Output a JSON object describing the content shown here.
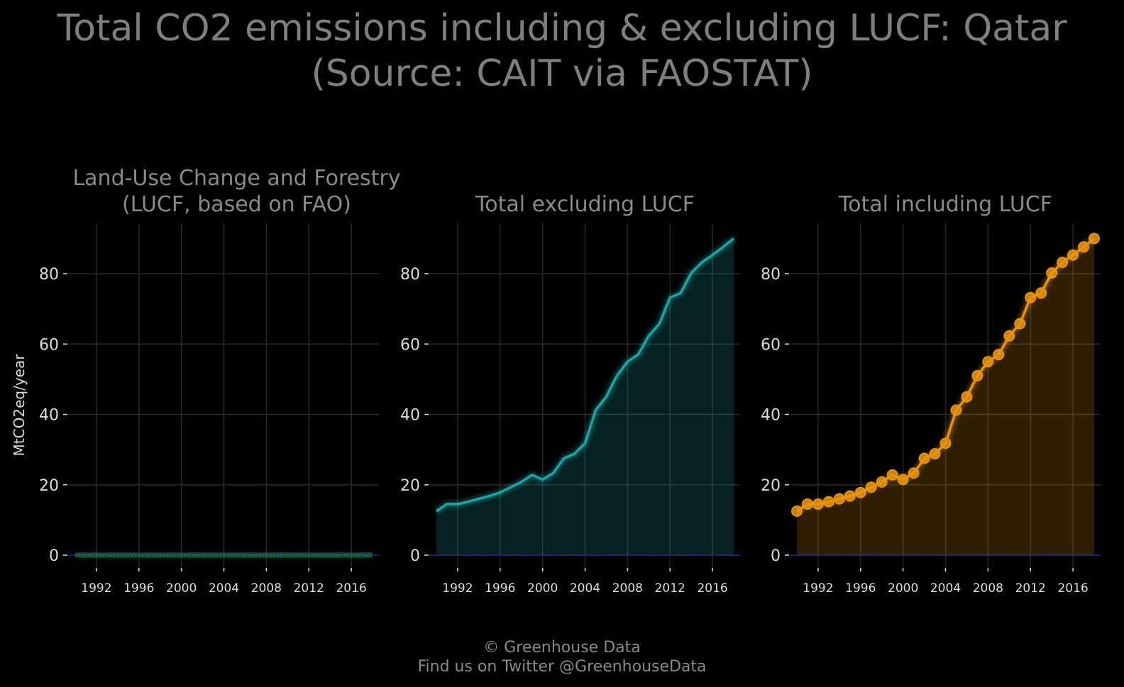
{
  "title_line1": "Total CO2 emissions including & excluding LUCF: Qatar",
  "title_line2": "(Source: CAIT via FAOSTAT)",
  "footer": {
    "credit": "© Greenhouse Data",
    "twitter": "Find us on Twitter @GreenhouseData"
  },
  "colors": {
    "background": "#000000",
    "grid": "#2a2a2a",
    "text": "#8a8a8a",
    "tick_text": "#dcdcdc",
    "zero_line": "#1a1aff",
    "lucf": "#1f7a3a",
    "excl": "#1aa6a6",
    "incl": "#e8940c"
  },
  "chart_data": [
    {
      "type": "line",
      "panel": "lucf",
      "title_line1": "Land-Use Change and Forestry",
      "title_line2": "(LUCF, based on FAO)",
      "ylabel": "MtCO2eq/year",
      "xlim": [
        1990,
        2018
      ],
      "ylim": [
        0,
        92
      ],
      "xticks": [
        1992,
        1996,
        2000,
        2004,
        2008,
        2012,
        2016
      ],
      "yticks": [
        0,
        20,
        40,
        60,
        80
      ],
      "x": [
        1990,
        1991,
        1992,
        1993,
        1994,
        1995,
        1996,
        1997,
        1998,
        1999,
        2000,
        2001,
        2002,
        2003,
        2004,
        2005,
        2006,
        2007,
        2008,
        2009,
        2010,
        2011,
        2012,
        2013,
        2014,
        2015,
        2016,
        2017,
        2018
      ],
      "series": [
        {
          "name": "",
          "values": [
            0,
            0,
            0,
            0,
            0,
            0,
            0,
            0,
            0,
            0,
            0,
            0,
            0,
            0,
            0,
            0,
            0,
            0,
            0,
            0,
            0,
            0,
            0,
            0,
            0,
            0,
            0,
            0,
            0
          ]
        }
      ],
      "markers": false,
      "area_fill": true
    },
    {
      "type": "area",
      "panel": "excl",
      "title_line1": "Total excluding LUCF",
      "title_line2": "",
      "ylabel": "",
      "xlim": [
        1990,
        2018
      ],
      "ylim": [
        0,
        92
      ],
      "xticks": [
        1992,
        1996,
        2000,
        2004,
        2008,
        2012,
        2016
      ],
      "yticks": [
        0,
        20,
        40,
        60,
        80
      ],
      "x": [
        1990,
        1991,
        1992,
        1993,
        1994,
        1995,
        1996,
        1997,
        1998,
        1999,
        2000,
        2001,
        2002,
        2003,
        2004,
        2005,
        2006,
        2007,
        2008,
        2009,
        2010,
        2011,
        2012,
        2013,
        2014,
        2015,
        2016,
        2017,
        2018
      ],
      "series": [
        {
          "name": "",
          "values": [
            12.5,
            14.5,
            14.5,
            15.2,
            16.0,
            16.8,
            17.8,
            19.3,
            20.8,
            22.8,
            21.5,
            23.3,
            27.5,
            28.8,
            31.8,
            41.2,
            45.0,
            51.0,
            55.0,
            57.0,
            62.3,
            65.8,
            73.2,
            74.5,
            80.2,
            83.2,
            85.3,
            87.6,
            90.0
          ]
        }
      ],
      "markers": false,
      "area_fill": true
    },
    {
      "type": "area",
      "panel": "incl",
      "title_line1": "Total including LUCF",
      "title_line2": "",
      "ylabel": "",
      "xlim": [
        1990,
        2018
      ],
      "ylim": [
        0,
        92
      ],
      "xticks": [
        1992,
        1996,
        2000,
        2004,
        2008,
        2012,
        2016
      ],
      "yticks": [
        0,
        20,
        40,
        60,
        80
      ],
      "x": [
        1990,
        1991,
        1992,
        1993,
        1994,
        1995,
        1996,
        1997,
        1998,
        1999,
        2000,
        2001,
        2002,
        2003,
        2004,
        2005,
        2006,
        2007,
        2008,
        2009,
        2010,
        2011,
        2012,
        2013,
        2014,
        2015,
        2016,
        2017,
        2018
      ],
      "series": [
        {
          "name": "",
          "values": [
            12.5,
            14.5,
            14.5,
            15.2,
            16.0,
            16.8,
            17.8,
            19.3,
            20.8,
            22.8,
            21.5,
            23.3,
            27.5,
            28.8,
            31.8,
            41.2,
            45.0,
            51.0,
            55.0,
            57.0,
            62.3,
            65.8,
            73.2,
            74.5,
            80.2,
            83.2,
            85.3,
            87.6,
            90.0
          ]
        }
      ],
      "markers": true,
      "area_fill": true
    }
  ]
}
